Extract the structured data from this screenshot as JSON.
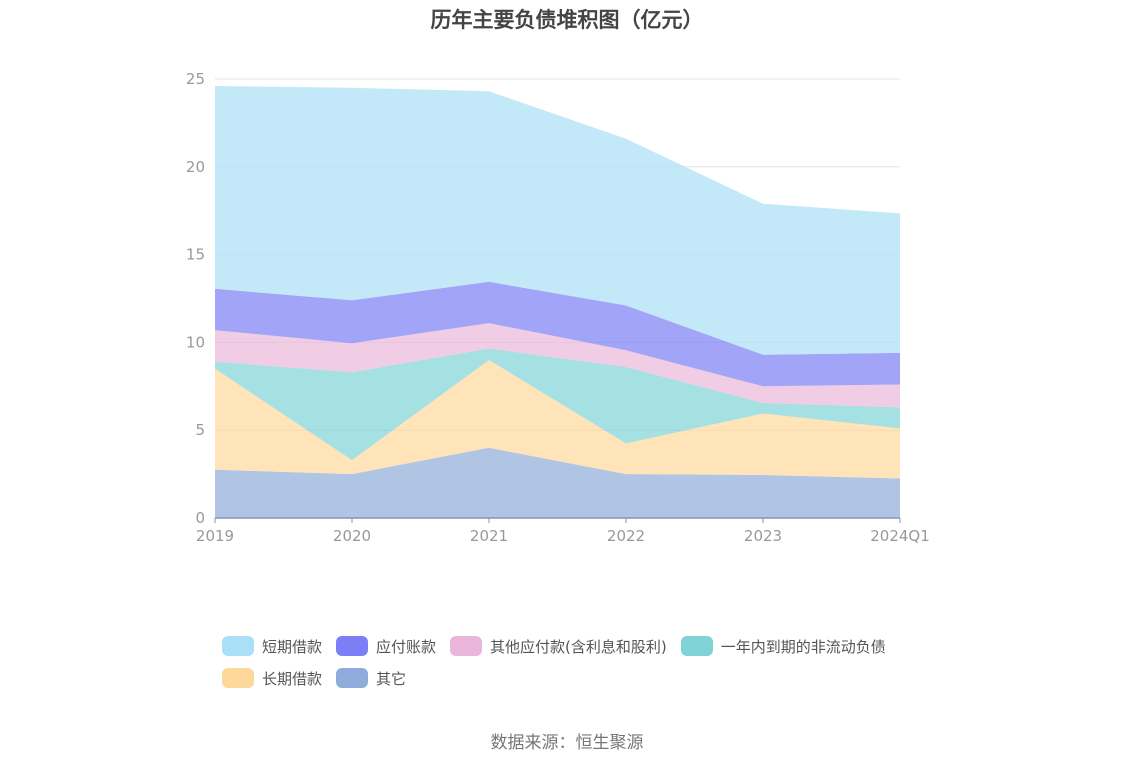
{
  "chart_data": {
    "type": "area",
    "stacked": true,
    "title": "历年主要负债堆积图（亿元）",
    "categories": [
      "2019",
      "2020",
      "2021",
      "2022",
      "2023",
      "2024Q1"
    ],
    "ylim": [
      0,
      25
    ],
    "yticks": [
      "0",
      "5",
      "10",
      "15",
      "20",
      "25"
    ],
    "grid": true,
    "legend_position": "bottom",
    "series": [
      {
        "name": "其它",
        "color": "#8fabd9",
        "values": [
          2.75,
          2.5,
          4.0,
          2.5,
          2.45,
          2.25
        ]
      },
      {
        "name": "长期借款",
        "color": "#fdd89a",
        "values": [
          5.75,
          0.8,
          5.0,
          1.75,
          3.5,
          2.85
        ]
      },
      {
        "name": "一年内到期的非流动负债",
        "color": "#7fd3d6",
        "values": [
          0.4,
          5.0,
          0.65,
          4.35,
          0.6,
          1.2
        ]
      },
      {
        "name": "其他应付款(含利息和股利)",
        "color": "#e9b6da",
        "values": [
          1.8,
          1.65,
          1.45,
          0.95,
          0.95,
          1.3
        ]
      },
      {
        "name": "应付账款",
        "color": "#7b7ef5",
        "values": [
          2.35,
          2.45,
          2.35,
          2.55,
          1.8,
          1.8
        ]
      },
      {
        "name": "短期借款",
        "color": "#a9e0f7",
        "values": [
          11.55,
          12.1,
          10.85,
          9.5,
          8.6,
          7.95
        ]
      }
    ]
  },
  "legend": {
    "row1": [
      {
        "label": "短期借款",
        "color": "#a9e0f7"
      },
      {
        "label": "应付账款",
        "color": "#7b7ef5"
      },
      {
        "label": "其他应付款(含利息和股利)",
        "color": "#e9b6da"
      },
      {
        "label": "一年内到期的非流动负债",
        "color": "#7fd3d6"
      }
    ],
    "row2": [
      {
        "label": "长期借款",
        "color": "#fdd89a"
      },
      {
        "label": "其它",
        "color": "#8fabd9"
      }
    ]
  },
  "source": "数据来源：恒生聚源"
}
